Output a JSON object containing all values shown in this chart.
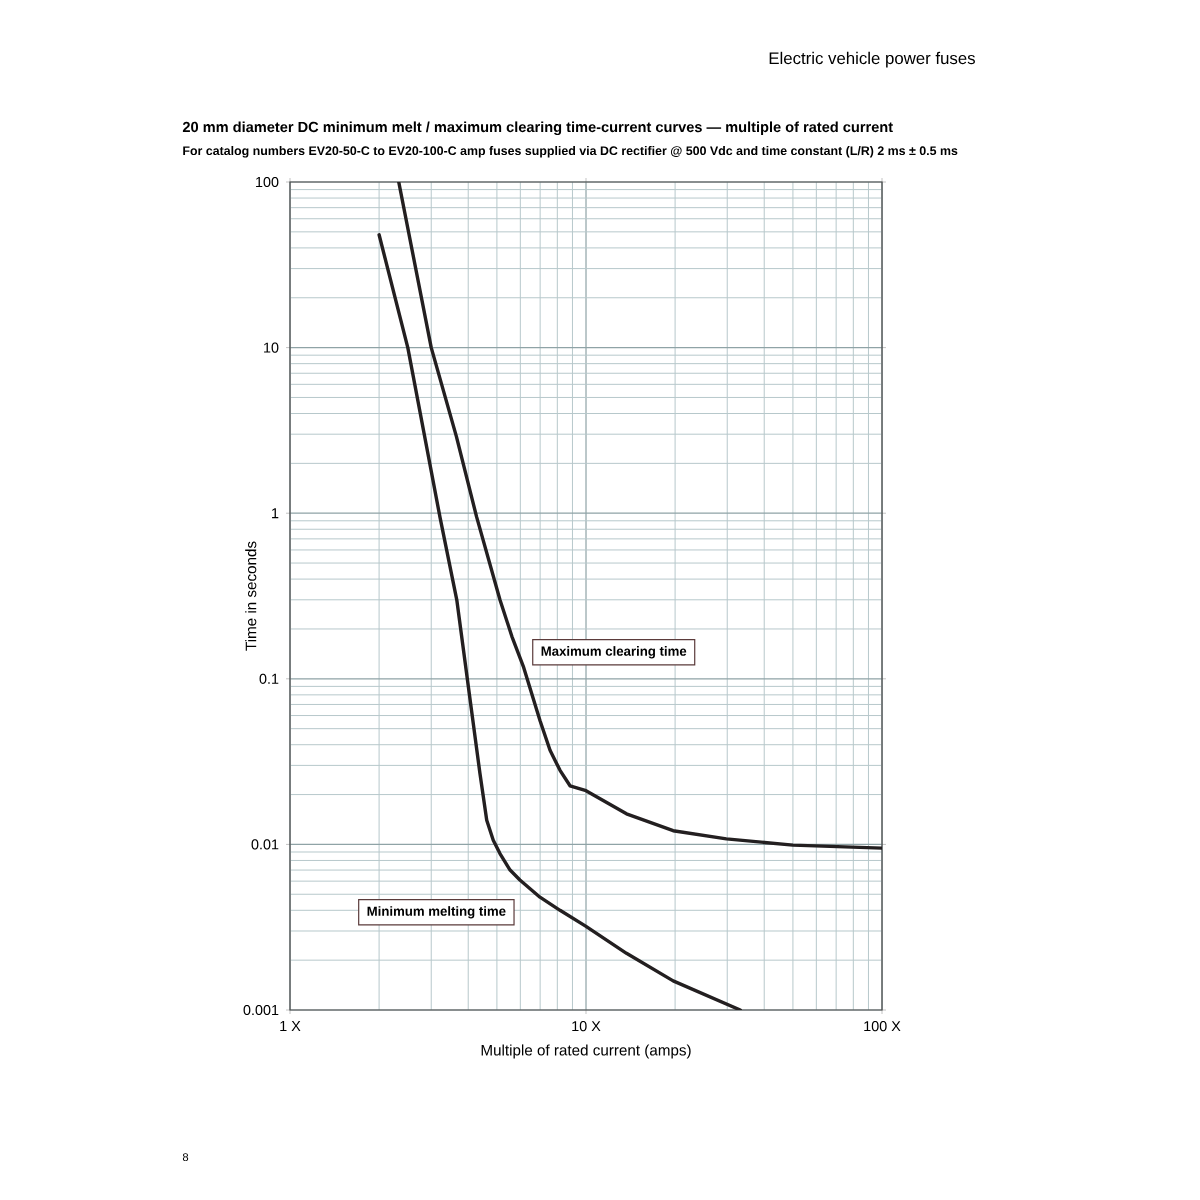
{
  "chart_data": {
    "type": "line",
    "title": "20 mm diameter DC minimum melt / maximum clearing time-current curves — multiple of rated current",
    "subtitle": "For catalog numbers EV20-50-C to EV20-100-C amp fuses supplied via DC rectifier @ 500 Vdc and time constant (L/R) 2 ms ± 0.5 ms",
    "xlabel": "Multiple of rated current (amps)",
    "ylabel": "Time in seconds",
    "annotations": [
      "Electric vehicle power fuses",
      "8"
    ],
    "log": "xy",
    "xlim": [
      1,
      100
    ],
    "ylim": [
      0.001,
      100
    ],
    "xticks": [
      {
        "value": 1,
        "label": "1 X"
      },
      {
        "value": 10,
        "label": "10 X"
      },
      {
        "value": 100,
        "label": "100 X"
      }
    ],
    "yticks": [
      0.001,
      0.01,
      0.1,
      1,
      10,
      100
    ],
    "grid": true,
    "line_style": "solid",
    "series": [
      {
        "name": "Minimum melting time",
        "color": "#231f20",
        "x": [
          2.0,
          2.5,
          3.21,
          3.66,
          4.06,
          4.38,
          4.62,
          4.86,
          5.12,
          5.54,
          5.98,
          6.99,
          8.17,
          10,
          13.7,
          19.7,
          33.2
        ],
        "values": [
          48,
          10,
          0.95,
          0.3,
          0.0745,
          0.027,
          0.014,
          0.0106,
          0.0088,
          0.007,
          0.0061,
          0.0048,
          0.004,
          0.0032,
          0.0022,
          0.0015,
          0.001
        ]
      },
      {
        "name": "Maximum clearing time",
        "color": "#231f20",
        "x": [
          2.33,
          3.0,
          3.65,
          4.27,
          5.12,
          5.62,
          6.14,
          6.99,
          7.56,
          8.17,
          8.83,
          10,
          13.7,
          19.7,
          29.8,
          50,
          100
        ],
        "values": [
          100,
          10,
          2.9,
          0.95,
          0.3,
          0.18,
          0.119,
          0.056,
          0.037,
          0.028,
          0.0226,
          0.0211,
          0.0153,
          0.0121,
          0.0108,
          0.0099,
          0.0095
        ]
      }
    ]
  }
}
